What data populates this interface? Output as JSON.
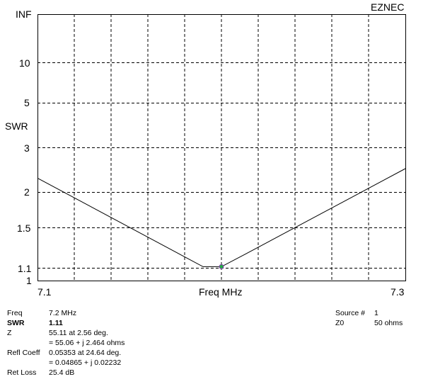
{
  "app_label": "EZNEC",
  "chart_data": {
    "type": "line",
    "title": "",
    "xlabel": "Freq MHz",
    "ylabel": "SWR",
    "xlim": [
      7.1,
      7.3
    ],
    "x_tick_labels": [
      "7.1",
      "7.3"
    ],
    "y_scale": "reflection-coefficient (SWR)",
    "y_tick_values": [
      1,
      1.1,
      1.5,
      2,
      3,
      5,
      10,
      "INF"
    ],
    "y_tick_labels": [
      "1",
      "1.1",
      "1.5",
      "2",
      "3",
      "5",
      "10",
      "INF"
    ],
    "grid": true,
    "x_gridlines": 10,
    "series": [
      {
        "x": [
          7.1,
          7.19,
          7.2,
          7.213,
          7.3
        ],
        "y": [
          2.25,
          1.11,
          1.11,
          1.22,
          2.45
        ]
      }
    ],
    "marker": {
      "x": 7.2,
      "y": 1.11,
      "color": "#22aa44"
    },
    "line_color": "#000000",
    "grid_color": "#000000"
  },
  "readout": {
    "freq_label": "Freq",
    "freq_value": "7.2 MHz",
    "swr_label": "SWR",
    "swr_value": "1.11",
    "z_label": "Z",
    "z_value_1": "55.11 at 2.56 deg.",
    "z_value_2": "= 55.06 + j 2.464 ohms",
    "refl_label": "Refl Coeff",
    "refl_value_1": "0.05353 at 24.64 deg.",
    "refl_value_2": "= 0.04865 + j 0.02232",
    "retloss_label": "Ret Loss",
    "retloss_value": "25.4 dB",
    "source_label": "Source #",
    "source_value": "1",
    "z0_label": "Z0",
    "z0_value": "50 ohms"
  }
}
